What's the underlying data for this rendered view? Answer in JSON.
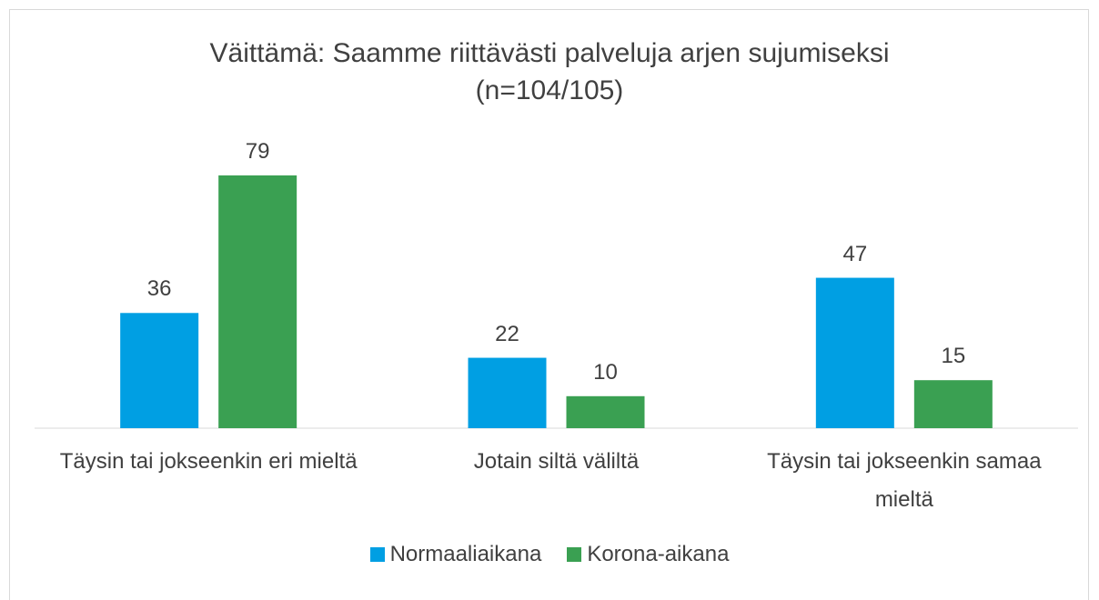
{
  "chart_data": {
    "type": "bar",
    "title": "Väittämä: Saamme riittävästi palveluja arjen sujumiseksi (n=104/105)",
    "categories": [
      "Täysin tai jokseenkin eri mieltä",
      "Jotain siltä väliltä",
      "Täysin tai jokseenkin samaa mieltä"
    ],
    "series": [
      {
        "name": "Normaaliaikana",
        "color": "#009fe3",
        "values": [
          36,
          22,
          47
        ]
      },
      {
        "name": "Korona-aikana",
        "color": "#3aa052",
        "values": [
          79,
          10,
          15
        ]
      }
    ],
    "legend": "bottom"
  }
}
